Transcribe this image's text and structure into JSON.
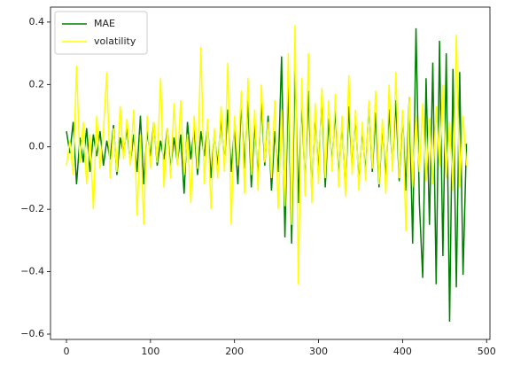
{
  "chart_data": {
    "type": "line",
    "x": [
      0,
      4,
      8,
      12,
      16,
      20,
      24,
      28,
      32,
      36,
      40,
      44,
      48,
      52,
      56,
      60,
      64,
      68,
      72,
      76,
      80,
      84,
      88,
      92,
      96,
      100,
      104,
      108,
      112,
      116,
      120,
      124,
      128,
      132,
      136,
      140,
      144,
      148,
      152,
      156,
      160,
      164,
      168,
      172,
      176,
      180,
      184,
      188,
      192,
      196,
      200,
      204,
      208,
      212,
      216,
      220,
      224,
      228,
      232,
      236,
      240,
      244,
      248,
      252,
      256,
      260,
      264,
      268,
      272,
      276,
      280,
      284,
      288,
      292,
      296,
      300,
      304,
      308,
      312,
      316,
      320,
      324,
      328,
      332,
      336,
      340,
      344,
      348,
      352,
      356,
      360,
      364,
      368,
      372,
      376,
      380,
      384,
      388,
      392,
      396,
      400,
      404,
      408,
      412,
      416,
      420,
      424,
      428,
      432,
      436,
      440,
      444,
      448,
      452,
      456,
      460,
      464,
      468,
      472,
      476
    ],
    "series": [
      {
        "name": "MAE",
        "color": "#008000",
        "values": [
          0.05,
          -0.02,
          0.08,
          -0.12,
          0.03,
          -0.05,
          0.06,
          -0.08,
          0.04,
          -0.03,
          0.05,
          -0.06,
          0.02,
          -0.04,
          0.07,
          -0.09,
          0.03,
          -0.02,
          0.06,
          -0.05,
          0.04,
          -0.08,
          0.1,
          -0.12,
          0.05,
          -0.03,
          0.08,
          -0.06,
          0.02,
          -0.04,
          0.06,
          -0.07,
          0.03,
          -0.05,
          0.04,
          -0.15,
          0.08,
          -0.04,
          0.06,
          -0.09,
          0.05,
          -0.03,
          0.07,
          -0.1,
          0.04,
          -0.06,
          0.09,
          -0.05,
          0.12,
          -0.08,
          0.06,
          -0.12,
          0.14,
          -0.07,
          0.15,
          -0.13,
          0.08,
          -0.1,
          0.15,
          -0.06,
          0.1,
          -0.14,
          0.05,
          -0.08,
          0.29,
          -0.29,
          0.22,
          -0.31,
          0.26,
          -0.18,
          0.14,
          -0.12,
          0.18,
          -0.15,
          0.11,
          -0.09,
          0.17,
          -0.13,
          0.09,
          -0.05,
          0.12,
          -0.1,
          0.08,
          -0.14,
          0.13,
          -0.07,
          0.1,
          -0.12,
          0.06,
          -0.09,
          0.14,
          -0.08,
          0.11,
          -0.13,
          0.07,
          -0.1,
          0.12,
          -0.06,
          0.15,
          -0.11,
          0.1,
          -0.14,
          0.16,
          -0.31,
          0.38,
          -0.18,
          -0.42,
          0.22,
          -0.25,
          0.27,
          -0.44,
          0.34,
          -0.35,
          0.3,
          -0.56,
          0.25,
          -0.45,
          0.24,
          -0.41,
          0.01
        ]
      },
      {
        "name": "volatility",
        "color": "#ffff00",
        "values": [
          -0.06,
          0.02,
          -0.09,
          0.26,
          -0.05,
          0.08,
          -0.12,
          0.04,
          -0.2,
          0.1,
          -0.07,
          0.05,
          0.24,
          -0.1,
          0.06,
          -0.08,
          0.13,
          -0.04,
          0.09,
          -0.06,
          0.12,
          -0.22,
          0.04,
          -0.25,
          0.1,
          -0.07,
          0.08,
          -0.05,
          0.22,
          -0.13,
          0.06,
          -0.1,
          0.14,
          -0.06,
          0.15,
          -0.09,
          0.04,
          -0.18,
          0.1,
          -0.07,
          0.32,
          -0.12,
          0.09,
          -0.2,
          0.06,
          -0.1,
          0.13,
          -0.08,
          0.27,
          -0.25,
          0.1,
          -0.06,
          0.18,
          -0.15,
          0.22,
          -0.09,
          0.12,
          -0.14,
          0.2,
          -0.05,
          0.08,
          -0.1,
          0.15,
          -0.2,
          0.12,
          -0.19,
          0.3,
          -0.25,
          0.39,
          -0.44,
          0.22,
          -0.16,
          0.3,
          -0.18,
          0.14,
          -0.12,
          0.19,
          -0.1,
          0.15,
          -0.08,
          0.17,
          -0.13,
          0.1,
          -0.16,
          0.23,
          -0.09,
          0.12,
          -0.14,
          0.08,
          -0.11,
          0.15,
          -0.07,
          0.18,
          -0.12,
          0.09,
          -0.15,
          0.2,
          -0.08,
          0.24,
          -0.1,
          0.12,
          -0.27,
          0.16,
          -0.13,
          0.1,
          -0.08,
          0.14,
          -0.11,
          0.09,
          -0.12,
          0.13,
          -0.06,
          0.2,
          -0.1,
          0.08,
          -0.14,
          0.36,
          -0.13,
          0.1,
          -0.06
        ]
      }
    ],
    "xlim": [
      -19,
      504
    ],
    "xticks": [
      0,
      100,
      200,
      300,
      400,
      500
    ],
    "ylim": [
      -0.617,
      0.448
    ],
    "yticks": [
      {
        "value": -0.6,
        "label": "−0.6"
      },
      {
        "value": -0.4,
        "label": "−0.4"
      },
      {
        "value": -0.2,
        "label": "−0.2"
      },
      {
        "value": 0,
        "label": "0.0"
      },
      0.2,
      0.4
    ],
    "legend": "upper left"
  }
}
